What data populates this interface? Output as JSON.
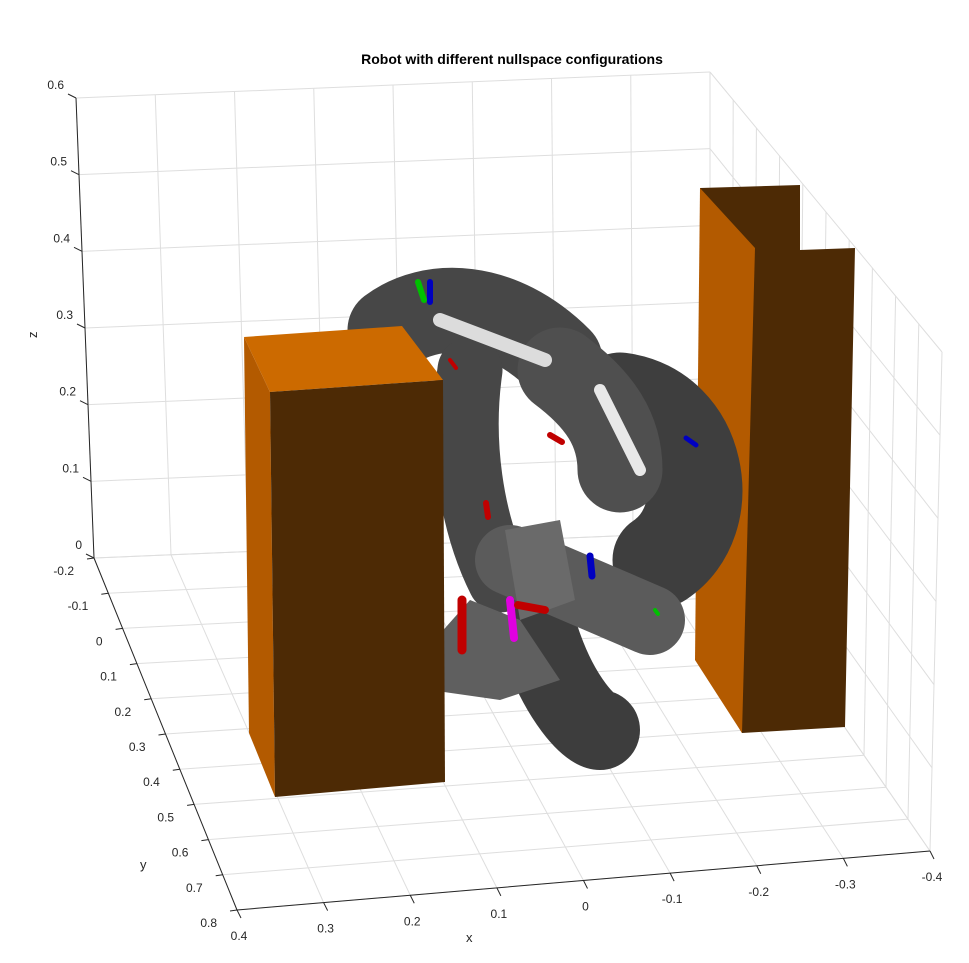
{
  "title": "Robot with different nullspace configurations",
  "axes": {
    "x": {
      "label": "x",
      "ticks": [
        "0.4",
        "0.3",
        "0.2",
        "0.1",
        "0",
        "-0.1",
        "-0.2",
        "-0.3",
        "-0.4"
      ]
    },
    "y": {
      "label": "y",
      "ticks": [
        "-0.2",
        "-0.1",
        "0",
        "0.1",
        "0.2",
        "0.3",
        "0.4",
        "0.5",
        "0.6",
        "0.7",
        "0.8"
      ]
    },
    "z": {
      "label": "z",
      "ticks": [
        "0",
        "0.1",
        "0.2",
        "0.3",
        "0.4",
        "0.5",
        "0.6"
      ]
    }
  },
  "scene": {
    "obstacle_color_front": "#B35A00",
    "obstacle_color_top": "#CC6A00",
    "obstacle_color_side": "#4D2A05",
    "robot_color": "#5A5A5A",
    "frame_colors": {
      "x": "#C00000",
      "y": "#00C000",
      "z": "#0000C0"
    },
    "end_effector_color": "#E000E0"
  }
}
